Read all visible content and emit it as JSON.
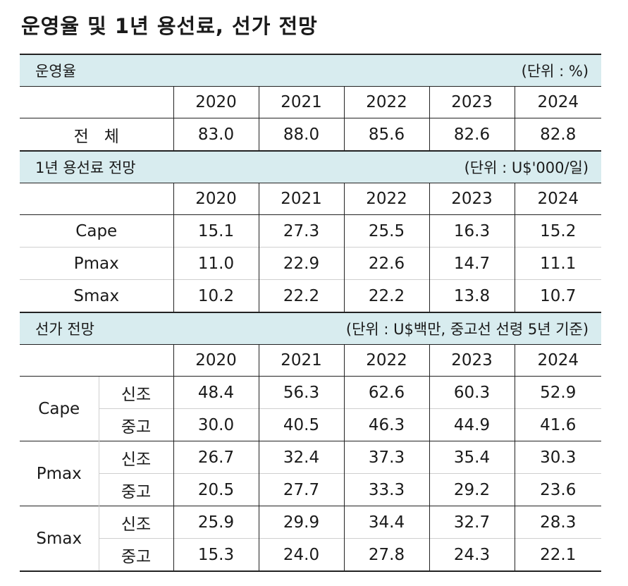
{
  "title": "운영율 및 1년 용선료, 선가 전망",
  "years": [
    "2020",
    "2021",
    "2022",
    "2023",
    "2024"
  ],
  "utilization": {
    "header": "운영율",
    "unit": "(단위 : %)",
    "rows": [
      {
        "label": "전   체",
        "values": [
          "83.0",
          "88.0",
          "85.6",
          "82.6",
          "82.8"
        ]
      }
    ]
  },
  "charter": {
    "header": "1년 용선료 전망",
    "unit": "(단위 : U$'000/일)",
    "rows": [
      {
        "label": "Cape",
        "values": [
          "15.1",
          "27.3",
          "25.5",
          "16.3",
          "15.2"
        ]
      },
      {
        "label": "Pmax",
        "values": [
          "11.0",
          "22.9",
          "22.6",
          "14.7",
          "11.1"
        ]
      },
      {
        "label": "Smax",
        "values": [
          "10.2",
          "22.2",
          "22.2",
          "13.8",
          "10.7"
        ]
      }
    ]
  },
  "price": {
    "header": "선가 전망",
    "unit": "(단위 : U$백만, 중고선 선령 5년 기준)",
    "groups": [
      {
        "label": "Cape",
        "rows": [
          {
            "sub": "신조",
            "values": [
              "48.4",
              "56.3",
              "62.6",
              "60.3",
              "52.9"
            ]
          },
          {
            "sub": "중고",
            "values": [
              "30.0",
              "40.5",
              "46.3",
              "44.9",
              "41.6"
            ]
          }
        ]
      },
      {
        "label": "Pmax",
        "rows": [
          {
            "sub": "신조",
            "values": [
              "26.7",
              "32.4",
              "37.3",
              "35.4",
              "30.3"
            ]
          },
          {
            "sub": "중고",
            "values": [
              "20.5",
              "27.7",
              "33.3",
              "29.2",
              "23.6"
            ]
          }
        ]
      },
      {
        "label": "Smax",
        "rows": [
          {
            "sub": "신조",
            "values": [
              "25.9",
              "29.9",
              "34.4",
              "32.7",
              "28.3"
            ]
          },
          {
            "sub": "중고",
            "values": [
              "15.3",
              "24.0",
              "27.8",
              "24.3",
              "22.1"
            ]
          }
        ]
      }
    ]
  }
}
